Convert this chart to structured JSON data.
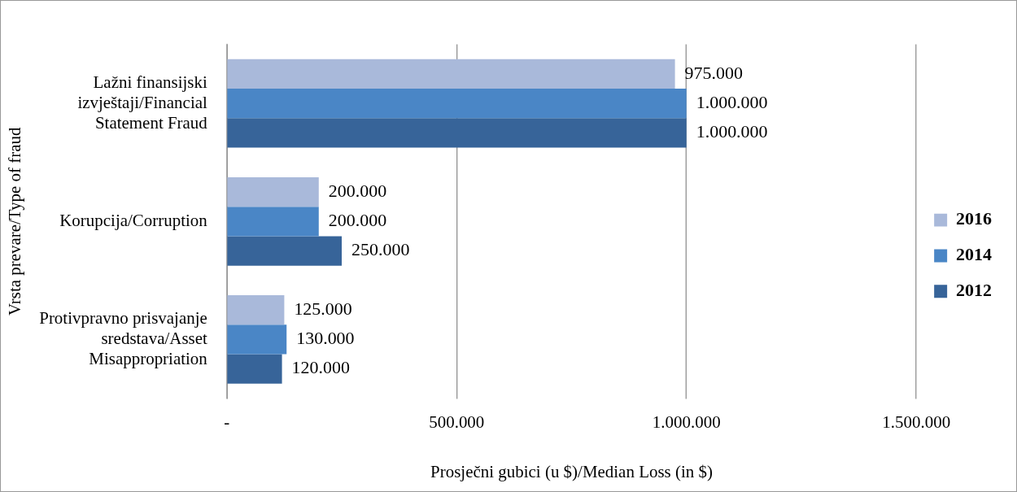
{
  "chart_data": {
    "type": "bar",
    "orientation": "horizontal",
    "xlabel": "Prosječni gubici (u $)/Median Loss (in $)",
    "ylabel": "Vrsta prevare/Type of fraud",
    "categories": [
      "Lažni finansijski izvještaji/Financial Statement Fraud",
      "Korupcija/Corruption",
      "Protivpravno prisvajanje sredstava/Asset Misappropriation"
    ],
    "series": [
      {
        "name": "2016",
        "color": "#a9b9da",
        "values": [
          975000,
          200000,
          125000
        ],
        "value_labels": [
          "975.000",
          "200.000",
          "125.000"
        ]
      },
      {
        "name": "2014",
        "color": "#4a86c6",
        "values": [
          1000000,
          200000,
          130000
        ],
        "value_labels": [
          "1.000.000",
          "200.000",
          "130.000"
        ]
      },
      {
        "name": "2012",
        "color": "#376499",
        "values": [
          1000000,
          250000,
          120000
        ],
        "value_labels": [
          "1.000.000",
          "250.000",
          "120.000"
        ]
      }
    ],
    "xlim": [
      0,
      1500000
    ],
    "xticks": [
      {
        "value": 0,
        "label": "-"
      },
      {
        "value": 500000,
        "label": "500.000"
      },
      {
        "value": 1000000,
        "label": "1.000.000"
      },
      {
        "value": 1500000,
        "label": "1.500.000"
      }
    ],
    "grid": "x",
    "legend": "right"
  }
}
